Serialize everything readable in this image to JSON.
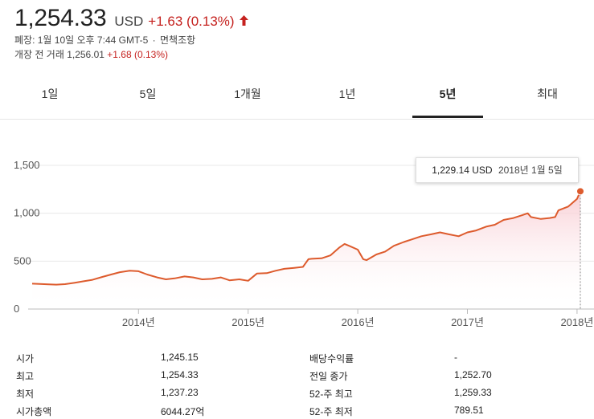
{
  "quote": {
    "price": "1,254.33",
    "currency": "USD",
    "change": "+1.63 (0.13%)",
    "status_line": "폐장: 1월 10일 오후 7:44 GMT-5",
    "separator": "·",
    "disclaimer": "면책조항",
    "premarket_label": "개장 전 거래 1,256.01",
    "premarket_change": "+1.68 (0.13%)",
    "accent_up_color": "#c5221f"
  },
  "tabs": [
    {
      "label": "1일"
    },
    {
      "label": "5일"
    },
    {
      "label": "1개월"
    },
    {
      "label": "1년"
    },
    {
      "label": "5년",
      "active": true
    },
    {
      "label": "최대"
    }
  ],
  "tooltip": {
    "value": "1,229.14 USD",
    "date": "2018년 1월 5일"
  },
  "chart_data": {
    "type": "area",
    "color": "#dd5b2d",
    "y_ticks": [
      "1,500",
      "1,000",
      "500",
      "0"
    ],
    "y_tick_values": [
      1500,
      1000,
      500,
      0
    ],
    "x_ticks": [
      "2014년",
      "2015년",
      "2016년",
      "2017년",
      "2018년"
    ],
    "x_tick_values": [
      2014,
      2015,
      2016,
      2017,
      2018
    ],
    "ylim": [
      0,
      1500
    ],
    "xlim": [
      2013.03,
      2018.03
    ],
    "grid": true,
    "x": [
      2013.03,
      2013.1,
      2013.18,
      2013.25,
      2013.33,
      2013.42,
      2013.5,
      2013.58,
      2013.67,
      2013.75,
      2013.83,
      2013.92,
      2014.0,
      2014.08,
      2014.17,
      2014.25,
      2014.33,
      2014.42,
      2014.5,
      2014.58,
      2014.67,
      2014.75,
      2014.83,
      2014.92,
      2015.0,
      2015.08,
      2015.17,
      2015.25,
      2015.33,
      2015.42,
      2015.5,
      2015.55,
      2015.58,
      2015.67,
      2015.75,
      2015.83,
      2015.88,
      2015.92,
      2016.0,
      2016.05,
      2016.08,
      2016.17,
      2016.25,
      2016.33,
      2016.42,
      2016.5,
      2016.58,
      2016.67,
      2016.75,
      2016.83,
      2016.92,
      2017.0,
      2017.08,
      2017.17,
      2017.25,
      2017.33,
      2017.42,
      2017.5,
      2017.55,
      2017.58,
      2017.67,
      2017.75,
      2017.8,
      2017.83,
      2017.92,
      2018.0,
      2018.03
    ],
    "values": [
      265,
      262,
      258,
      255,
      260,
      275,
      290,
      305,
      335,
      360,
      385,
      400,
      395,
      360,
      330,
      310,
      320,
      340,
      330,
      310,
      315,
      330,
      300,
      310,
      295,
      370,
      375,
      400,
      420,
      430,
      440,
      520,
      525,
      530,
      560,
      640,
      680,
      660,
      620,
      520,
      510,
      570,
      600,
      660,
      700,
      730,
      760,
      780,
      800,
      780,
      760,
      800,
      820,
      860,
      880,
      930,
      950,
      980,
      1000,
      960,
      940,
      950,
      960,
      1030,
      1070,
      1150,
      1229.14
    ]
  },
  "stats": {
    "left": [
      {
        "label": "시가",
        "value": "1,245.15"
      },
      {
        "label": "최고",
        "value": "1,254.33"
      },
      {
        "label": "최저",
        "value": "1,237.23"
      },
      {
        "label": "시가총액",
        "value": "6044.27억"
      }
    ],
    "right": [
      {
        "label": "배당수익률",
        "value": "-"
      },
      {
        "label": "전일 종가",
        "value": "1,252.70"
      },
      {
        "label": "52-주 최고",
        "value": "1,259.33"
      },
      {
        "label": "52-주 최저",
        "value": "789.51"
      }
    ]
  }
}
